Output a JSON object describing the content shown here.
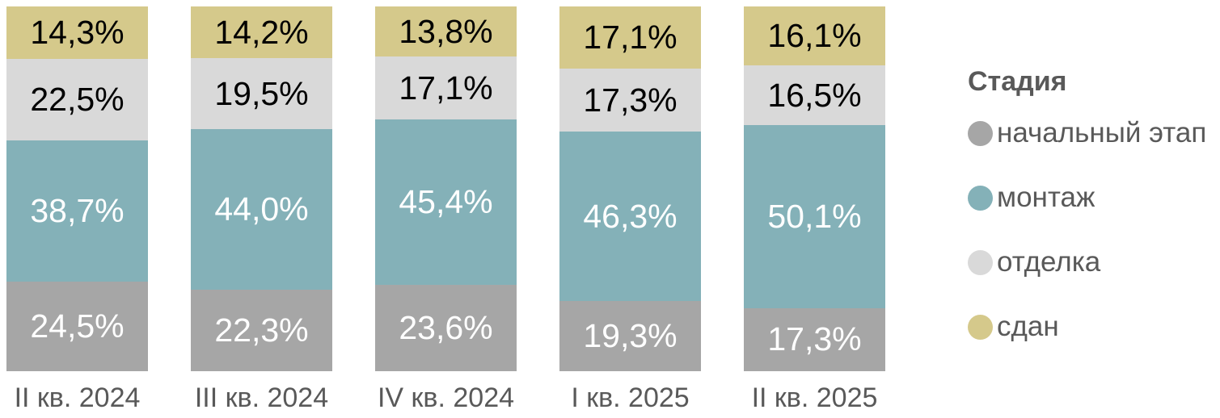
{
  "chart_data": {
    "type": "bar",
    "variant": "stacked-100-percent",
    "title": "",
    "xlabel": "",
    "ylabel": "",
    "ylim": [
      0,
      100
    ],
    "grid": false,
    "value_format": "percent-comma-decimal",
    "categories": [
      "II кв. 2024",
      "III кв. 2024",
      "IV кв. 2024",
      "I кв. 2025",
      "II кв. 2025"
    ],
    "series": [
      {
        "name": "начальный этап",
        "color": "#a6a6a6",
        "label_color": "#ffffff",
        "values": [
          24.5,
          22.3,
          23.6,
          19.3,
          17.3
        ],
        "labels": [
          "24,5%",
          "22,3%",
          "23,6%",
          "19,3%",
          "17,3%"
        ]
      },
      {
        "name": "монтаж",
        "color": "#84b1b8",
        "label_color": "#ffffff",
        "values": [
          38.7,
          44.0,
          45.4,
          46.3,
          50.1
        ],
        "labels": [
          "38,7%",
          "44,0%",
          "45,4%",
          "46,3%",
          "50,1%"
        ]
      },
      {
        "name": "отделка",
        "color": "#d9d9d9",
        "label_color": "#000000",
        "values": [
          22.5,
          19.5,
          17.1,
          17.3,
          16.5
        ],
        "labels": [
          "22,5%",
          "19,5%",
          "17,1%",
          "17,3%",
          "16,5%"
        ]
      },
      {
        "name": "сдан",
        "color": "#d5c98b",
        "label_color": "#000000",
        "values": [
          14.3,
          14.2,
          13.8,
          17.1,
          16.1
        ],
        "labels": [
          "14,3%",
          "14,2%",
          "13,8%",
          "17,1%",
          "16,1%"
        ]
      }
    ],
    "legend": {
      "title": "Стадия",
      "position": "right",
      "text_color": "#595959"
    }
  }
}
